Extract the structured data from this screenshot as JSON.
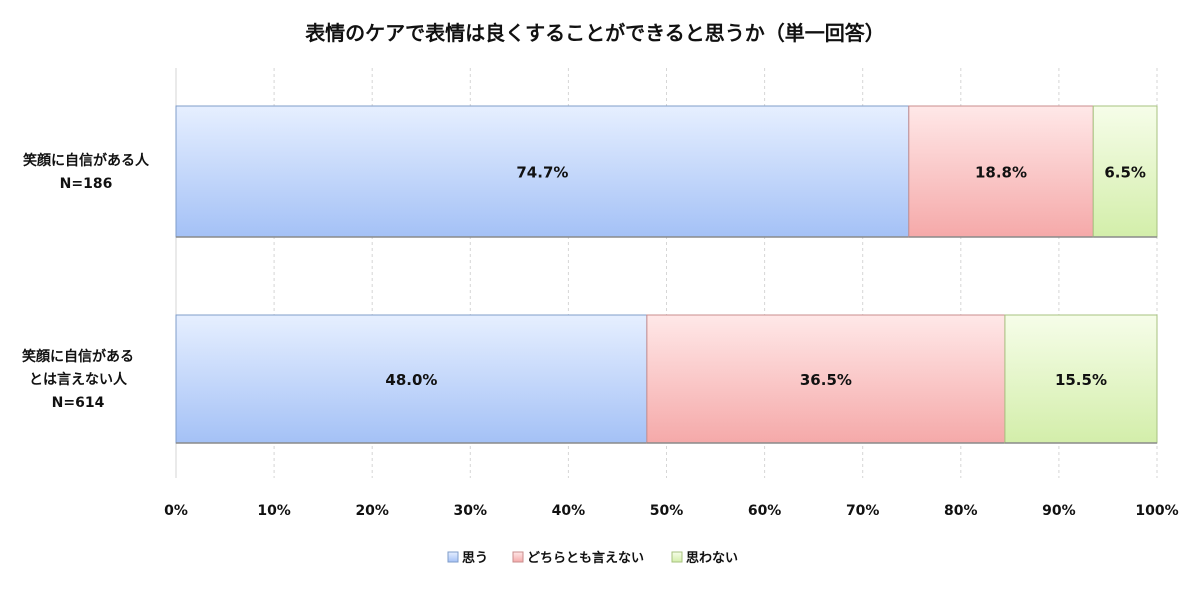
{
  "chart_data": {
    "type": "bar",
    "orientation": "horizontal",
    "stacked": true,
    "title": "表情のケアで表情は良くすることができると思うか（単一回答）",
    "categories": [
      [
        "笑顔に自信がある人",
        "N=186"
      ],
      [
        "笑顔に自信がある",
        "とは言えない人",
        "N=614"
      ]
    ],
    "series": [
      {
        "name": "思う",
        "values": [
          74.7,
          48.0
        ],
        "labels": [
          "74.7%",
          "48.0%"
        ],
        "color": "#a9c6f7"
      },
      {
        "name": "どちらとも言えない",
        "values": [
          18.8,
          36.5
        ],
        "labels": [
          "18.8%",
          "36.5%"
        ],
        "color": "#f7b3b3"
      },
      {
        "name": "思わない",
        "values": [
          6.5,
          15.5
        ],
        "labels": [
          "6.5%",
          "15.5%"
        ],
        "color": "#d8f0b0"
      }
    ],
    "x_ticks": [
      "0%",
      "10%",
      "20%",
      "30%",
      "40%",
      "50%",
      "60%",
      "70%",
      "80%",
      "90%",
      "100%"
    ],
    "xlim": [
      0,
      100
    ],
    "grid": "vertical dashed",
    "legend": "bottom"
  }
}
